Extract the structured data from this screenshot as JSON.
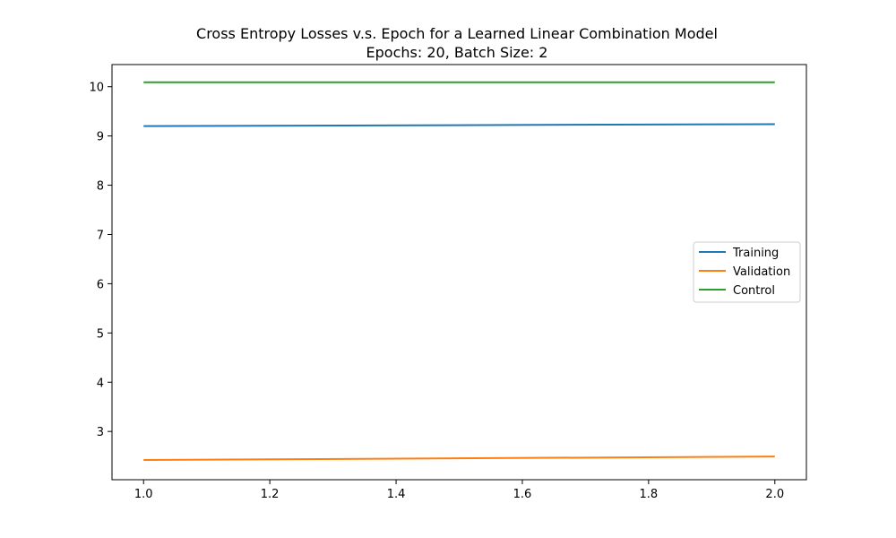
{
  "chart_data": {
    "type": "line",
    "title": "Cross Entropy Losses v.s. Epoch for a Learned Linear Combination Model",
    "subtitle": "Epochs: 20, Batch Size: 2",
    "xlabel": "",
    "ylabel": "",
    "xlim": [
      0.95,
      2.05
    ],
    "ylim": [
      2.02,
      10.45
    ],
    "x_ticks": [
      "1.0",
      "1.2",
      "1.4",
      "1.6",
      "1.8",
      "2.0"
    ],
    "y_ticks": [
      "3",
      "4",
      "5",
      "6",
      "7",
      "8",
      "9",
      "10"
    ],
    "grid": false,
    "legend_position": "center-right",
    "x": [
      1.0,
      2.0
    ],
    "series": [
      {
        "name": "Training",
        "values": [
          9.2,
          9.24
        ],
        "color": "#1f77b4"
      },
      {
        "name": "Validation",
        "values": [
          2.42,
          2.49
        ],
        "color": "#ff7f0e"
      },
      {
        "name": "Control",
        "values": [
          10.09,
          10.09
        ],
        "color": "#2ca02c"
      }
    ]
  }
}
